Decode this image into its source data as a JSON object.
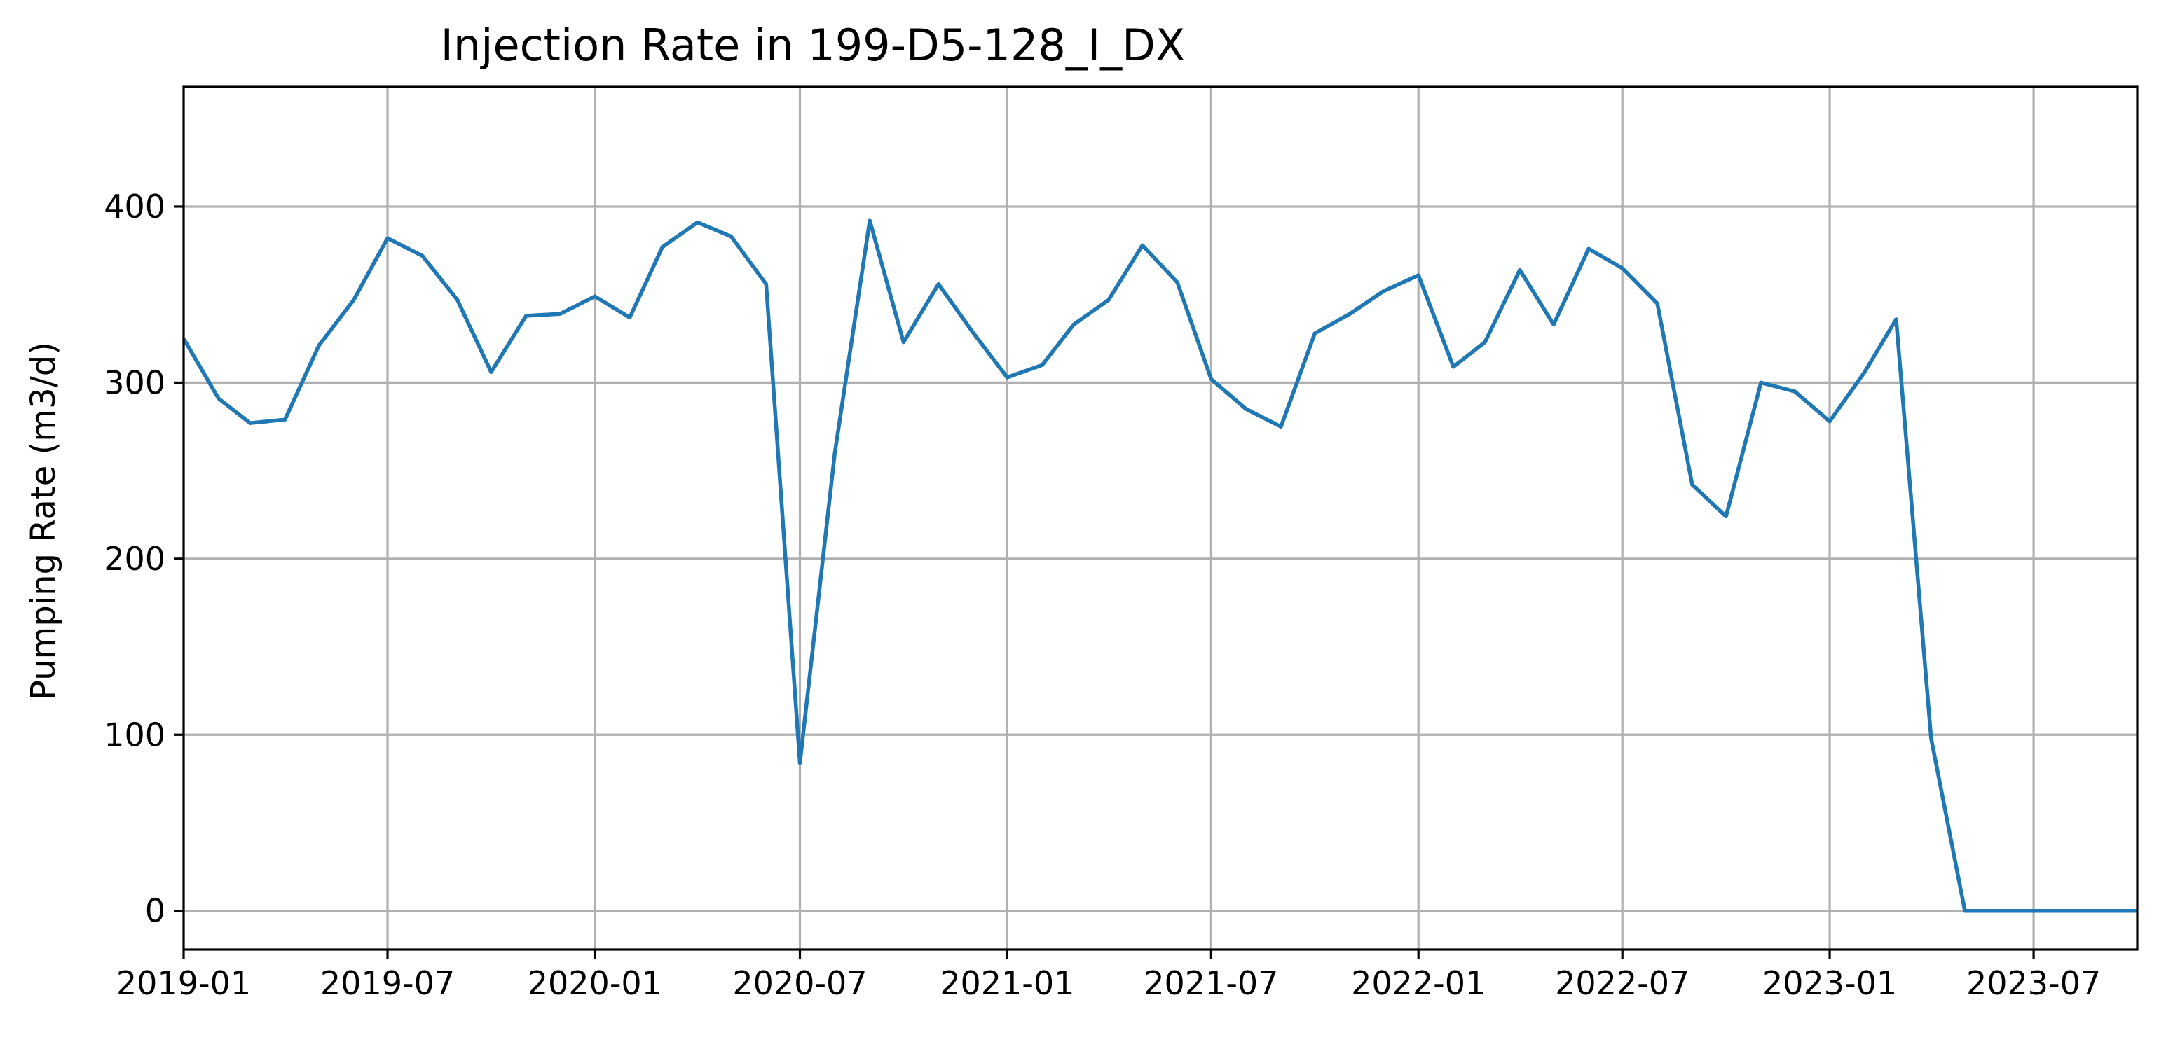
{
  "chart_data": {
    "type": "line",
    "title": "Injection Rate in 199-D5-128_I_DX",
    "xlabel": "",
    "ylabel": "Pumping Rate (m3/d)",
    "xlim": [
      "2019-01-01",
      "2023-10-01"
    ],
    "ylim": [
      -22,
      468
    ],
    "grid": true,
    "x_ticks": [
      "2019-01",
      "2019-07",
      "2020-01",
      "2020-07",
      "2021-01",
      "2021-07",
      "2022-01",
      "2022-07",
      "2023-01",
      "2023-07"
    ],
    "y_ticks": [
      0,
      100,
      200,
      300,
      400
    ],
    "colors": {
      "line": "#1f77b4",
      "grid": "#b0b0b0"
    },
    "series": [
      {
        "x": [
          "2019-01-01",
          "2019-02-01",
          "2019-03-01",
          "2019-04-01",
          "2019-05-01",
          "2019-06-01",
          "2019-07-01",
          "2019-08-01",
          "2019-09-01",
          "2019-10-01",
          "2019-11-01",
          "2019-12-01",
          "2020-01-01",
          "2020-02-01",
          "2020-03-01",
          "2020-04-01",
          "2020-05-01",
          "2020-06-01",
          "2020-07-01",
          "2020-08-01",
          "2020-09-01",
          "2020-10-01",
          "2020-11-01",
          "2020-12-01",
          "2021-01-01",
          "2021-02-01",
          "2021-03-01",
          "2021-04-01",
          "2021-05-01",
          "2021-06-01",
          "2021-07-01",
          "2021-08-01",
          "2021-09-01",
          "2021-10-01",
          "2021-11-01",
          "2021-12-01",
          "2022-01-01",
          "2022-02-01",
          "2022-03-01",
          "2022-04-01",
          "2022-05-01",
          "2022-06-01",
          "2022-07-01",
          "2022-08-01",
          "2022-09-01",
          "2022-10-01",
          "2022-11-01",
          "2022-12-01",
          "2023-01-01",
          "2023-02-01",
          "2023-03-01",
          "2023-04-01",
          "2023-05-01",
          "2023-06-01",
          "2023-07-01",
          "2023-08-01",
          "2023-09-01",
          "2023-10-01"
        ],
        "y": [
          325,
          291,
          277,
          279,
          321,
          347,
          382,
          372,
          347,
          306,
          338,
          339,
          349,
          337,
          377,
          391,
          383,
          356,
          84,
          260,
          392,
          323,
          356,
          329,
          303,
          310,
          333,
          347,
          378,
          357,
          302,
          285,
          275,
          328,
          339,
          352,
          361,
          309,
          323,
          364,
          333,
          376,
          365,
          345,
          242,
          224,
          300,
          295,
          278,
          306,
          336,
          98,
          0,
          0,
          0,
          0,
          0,
          0
        ]
      }
    ]
  }
}
